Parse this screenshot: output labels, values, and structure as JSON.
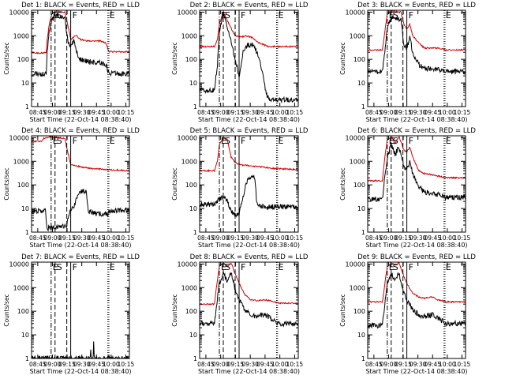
{
  "colors": {
    "events": "#000000",
    "lld": "#d40000",
    "frame": "#000000"
  },
  "panel_titles": [
    "Det 1: BLACK = Events, RED = LLD",
    "Det 2: BLACK = Events, RED = LLD",
    "Det 3: BLACK = Events, RED = LLD",
    "Det 4: BLACK = Events, RED = LLD",
    "Det 5: BLACK = Events, RED = LLD",
    "Det 6: BLACK = Events, RED = LLD",
    "Det 7: BLACK = Events, RED = LLD",
    "Det 8: BLACK = Events, RED = LLD",
    "Det 9: BLACK = Events, RED = LLD"
  ],
  "chart_data": {
    "type": "line",
    "ylabel": "Counts/sec",
    "xlabel": "Start Time (22-Oct-14 08:38:40)",
    "x_tick_labels": [
      "08:45",
      "09:00",
      "09:15",
      "09:30",
      "09:45",
      "10:00",
      "10:15"
    ],
    "y_tick_labels": [
      "1",
      "10",
      "100",
      "1000",
      "10000"
    ],
    "y_scale": "log",
    "ylim": [
      1,
      12000
    ],
    "xlim_minutes": [
      0,
      100
    ],
    "x_tick_minutes": [
      6.33,
      21.33,
      36.33,
      51.33,
      66.33,
      81.33,
      96.33
    ],
    "markers": [
      {
        "minute": 20,
        "style": "dash-dot",
        "label": "E"
      },
      {
        "minute": 24,
        "style": "dashed",
        "label": "S"
      },
      {
        "minute": 36,
        "style": "dashed",
        "label": ""
      },
      {
        "minute": 40,
        "style": "solid",
        "label": "F"
      },
      {
        "minute": 78,
        "style": "dotted",
        "label": "E"
      },
      {
        "minute": 79,
        "style": "dotted",
        "label": ""
      }
    ],
    "panels": [
      {
        "lld": [
          [
            0,
            190
          ],
          [
            15,
            190
          ],
          [
            16,
            700
          ],
          [
            18,
            3000
          ],
          [
            21,
            9000
          ],
          [
            26,
            11000
          ],
          [
            34,
            10000
          ],
          [
            37,
            3000
          ],
          [
            40,
            700
          ],
          [
            43,
            900
          ],
          [
            46,
            1000
          ],
          [
            50,
            700
          ],
          [
            56,
            600
          ],
          [
            70,
            600
          ],
          [
            76,
            500
          ],
          [
            79,
            210
          ],
          [
            100,
            210
          ]
        ],
        "events": [
          [
            0,
            25
          ],
          [
            15,
            25
          ],
          [
            16,
            200
          ],
          [
            18,
            1500
          ],
          [
            21,
            5000
          ],
          [
            26,
            8000
          ],
          [
            34,
            5000
          ],
          [
            37,
            600
          ],
          [
            40,
            300
          ],
          [
            43,
            600
          ],
          [
            46,
            200
          ],
          [
            50,
            100
          ],
          [
            58,
            80
          ],
          [
            70,
            70
          ],
          [
            76,
            60
          ],
          [
            79,
            25
          ],
          [
            100,
            25
          ]
        ]
      },
      {
        "lld": [
          [
            0,
            350
          ],
          [
            15,
            350
          ],
          [
            18,
            700
          ],
          [
            20,
            3000
          ],
          [
            24,
            10000
          ],
          [
            30,
            3000
          ],
          [
            36,
            1000
          ],
          [
            42,
            900
          ],
          [
            48,
            1000
          ],
          [
            54,
            800
          ],
          [
            60,
            500
          ],
          [
            66,
            400
          ],
          [
            70,
            350
          ],
          [
            100,
            350
          ]
        ],
        "events": [
          [
            0,
            5
          ],
          [
            15,
            5
          ],
          [
            18,
            60
          ],
          [
            20,
            1500
          ],
          [
            24,
            8000
          ],
          [
            30,
            1300
          ],
          [
            36,
            100
          ],
          [
            40,
            20
          ],
          [
            44,
            200
          ],
          [
            48,
            400
          ],
          [
            54,
            400
          ],
          [
            58,
            200
          ],
          [
            64,
            30
          ],
          [
            67,
            4
          ],
          [
            70,
            2
          ],
          [
            80,
            2
          ],
          [
            100,
            2
          ]
        ]
      },
      {
        "lld": [
          [
            0,
            250
          ],
          [
            15,
            250
          ],
          [
            17,
            1000
          ],
          [
            20,
            9000
          ],
          [
            24,
            11000
          ],
          [
            34,
            10000
          ],
          [
            37,
            3000
          ],
          [
            40,
            2000
          ],
          [
            43,
            3000
          ],
          [
            46,
            1000
          ],
          [
            52,
            500
          ],
          [
            58,
            300
          ],
          [
            70,
            300
          ],
          [
            76,
            280
          ],
          [
            79,
            250
          ],
          [
            100,
            250
          ]
        ],
        "events": [
          [
            0,
            30
          ],
          [
            15,
            30
          ],
          [
            17,
            150
          ],
          [
            20,
            2000
          ],
          [
            24,
            6000
          ],
          [
            34,
            5000
          ],
          [
            37,
            400
          ],
          [
            40,
            300
          ],
          [
            43,
            900
          ],
          [
            46,
            200
          ],
          [
            52,
            60
          ],
          [
            58,
            40
          ],
          [
            70,
            40
          ],
          [
            76,
            35
          ],
          [
            79,
            30
          ],
          [
            100,
            30
          ]
        ]
      },
      {
        "lld": [
          [
            0,
            7000
          ],
          [
            10,
            7000
          ],
          [
            12,
            9000
          ],
          [
            18,
            11000
          ],
          [
            28,
            10000
          ],
          [
            34,
            9000
          ],
          [
            40,
            700
          ],
          [
            48,
            600
          ],
          [
            60,
            500
          ],
          [
            75,
            450
          ],
          [
            100,
            400
          ]
        ],
        "events": [
          [
            0,
            8
          ],
          [
            14,
            8
          ],
          [
            16,
            1.5
          ],
          [
            20,
            1.5
          ],
          [
            36,
            2
          ],
          [
            38,
            5
          ],
          [
            40,
            8
          ],
          [
            44,
            15
          ],
          [
            48,
            50
          ],
          [
            52,
            55
          ],
          [
            56,
            55
          ],
          [
            58,
            8
          ],
          [
            66,
            6
          ],
          [
            78,
            6
          ],
          [
            79,
            8
          ],
          [
            100,
            8
          ]
        ]
      },
      {
        "lld": [
          [
            0,
            400
          ],
          [
            15,
            400
          ],
          [
            18,
            1000
          ],
          [
            20,
            5000
          ],
          [
            24,
            10000
          ],
          [
            28,
            8000
          ],
          [
            32,
            1500
          ],
          [
            36,
            900
          ],
          [
            42,
            700
          ],
          [
            50,
            650
          ],
          [
            60,
            600
          ],
          [
            75,
            500
          ],
          [
            100,
            450
          ]
        ],
        "events": [
          [
            0,
            15
          ],
          [
            15,
            15
          ],
          [
            18,
            20
          ],
          [
            20,
            25
          ],
          [
            24,
            30
          ],
          [
            28,
            20
          ],
          [
            32,
            8
          ],
          [
            36,
            5
          ],
          [
            40,
            6
          ],
          [
            44,
            30
          ],
          [
            48,
            150
          ],
          [
            52,
            200
          ],
          [
            56,
            200
          ],
          [
            58,
            15
          ],
          [
            66,
            12
          ],
          [
            80,
            12
          ],
          [
            100,
            12
          ]
        ]
      },
      {
        "lld": [
          [
            0,
            150
          ],
          [
            15,
            150
          ],
          [
            17,
            1000
          ],
          [
            20,
            8000
          ],
          [
            24,
            11000
          ],
          [
            28,
            6000
          ],
          [
            32,
            11000
          ],
          [
            37,
            3000
          ],
          [
            40,
            2500
          ],
          [
            43,
            4000
          ],
          [
            46,
            1500
          ],
          [
            52,
            400
          ],
          [
            58,
            300
          ],
          [
            70,
            250
          ],
          [
            76,
            220
          ],
          [
            79,
            200
          ],
          [
            100,
            200
          ]
        ],
        "events": [
          [
            0,
            25
          ],
          [
            15,
            25
          ],
          [
            17,
            150
          ],
          [
            20,
            1500
          ],
          [
            24,
            5000
          ],
          [
            28,
            2000
          ],
          [
            32,
            4000
          ],
          [
            37,
            600
          ],
          [
            40,
            500
          ],
          [
            43,
            900
          ],
          [
            46,
            300
          ],
          [
            52,
            80
          ],
          [
            58,
            50
          ],
          [
            70,
            40
          ],
          [
            76,
            35
          ],
          [
            79,
            30
          ],
          [
            100,
            30
          ]
        ]
      },
      {
        "lld": [],
        "events": [
          [
            0,
            1
          ],
          [
            60,
            1
          ],
          [
            60.5,
            2
          ],
          [
            61,
            1
          ],
          [
            63,
            1
          ],
          [
            63.5,
            5
          ],
          [
            64,
            1
          ],
          [
            100,
            1
          ]
        ]
      },
      {
        "lld": [
          [
            0,
            200
          ],
          [
            15,
            200
          ],
          [
            17,
            1000
          ],
          [
            20,
            8000
          ],
          [
            24,
            11000
          ],
          [
            28,
            8000
          ],
          [
            32,
            11000
          ],
          [
            37,
            3000
          ],
          [
            40,
            1500
          ],
          [
            43,
            900
          ],
          [
            46,
            500
          ],
          [
            52,
            300
          ],
          [
            58,
            280
          ],
          [
            66,
            300
          ],
          [
            72,
            280
          ],
          [
            76,
            250
          ],
          [
            79,
            220
          ],
          [
            100,
            220
          ]
        ],
        "events": [
          [
            0,
            30
          ],
          [
            15,
            30
          ],
          [
            17,
            150
          ],
          [
            20,
            1500
          ],
          [
            24,
            4000
          ],
          [
            28,
            1800
          ],
          [
            32,
            4000
          ],
          [
            37,
            600
          ],
          [
            40,
            300
          ],
          [
            43,
            200
          ],
          [
            46,
            100
          ],
          [
            52,
            70
          ],
          [
            58,
            60
          ],
          [
            66,
            70
          ],
          [
            72,
            50
          ],
          [
            76,
            40
          ],
          [
            79,
            30
          ],
          [
            100,
            30
          ]
        ]
      },
      {
        "lld": [
          [
            0,
            250
          ],
          [
            15,
            250
          ],
          [
            17,
            1000
          ],
          [
            20,
            8000
          ],
          [
            24,
            11000
          ],
          [
            28,
            9000
          ],
          [
            32,
            11000
          ],
          [
            37,
            3000
          ],
          [
            40,
            1500
          ],
          [
            43,
            900
          ],
          [
            46,
            600
          ],
          [
            52,
            400
          ],
          [
            58,
            350
          ],
          [
            66,
            400
          ],
          [
            72,
            300
          ],
          [
            76,
            280
          ],
          [
            79,
            250
          ],
          [
            100,
            250
          ]
        ],
        "events": [
          [
            0,
            25
          ],
          [
            15,
            25
          ],
          [
            17,
            150
          ],
          [
            20,
            1500
          ],
          [
            24,
            4000
          ],
          [
            28,
            2000
          ],
          [
            32,
            4000
          ],
          [
            37,
            600
          ],
          [
            40,
            300
          ],
          [
            43,
            200
          ],
          [
            46,
            120
          ],
          [
            52,
            70
          ],
          [
            58,
            60
          ],
          [
            66,
            70
          ],
          [
            72,
            50
          ],
          [
            76,
            40
          ],
          [
            79,
            30
          ],
          [
            100,
            30
          ]
        ]
      }
    ]
  }
}
